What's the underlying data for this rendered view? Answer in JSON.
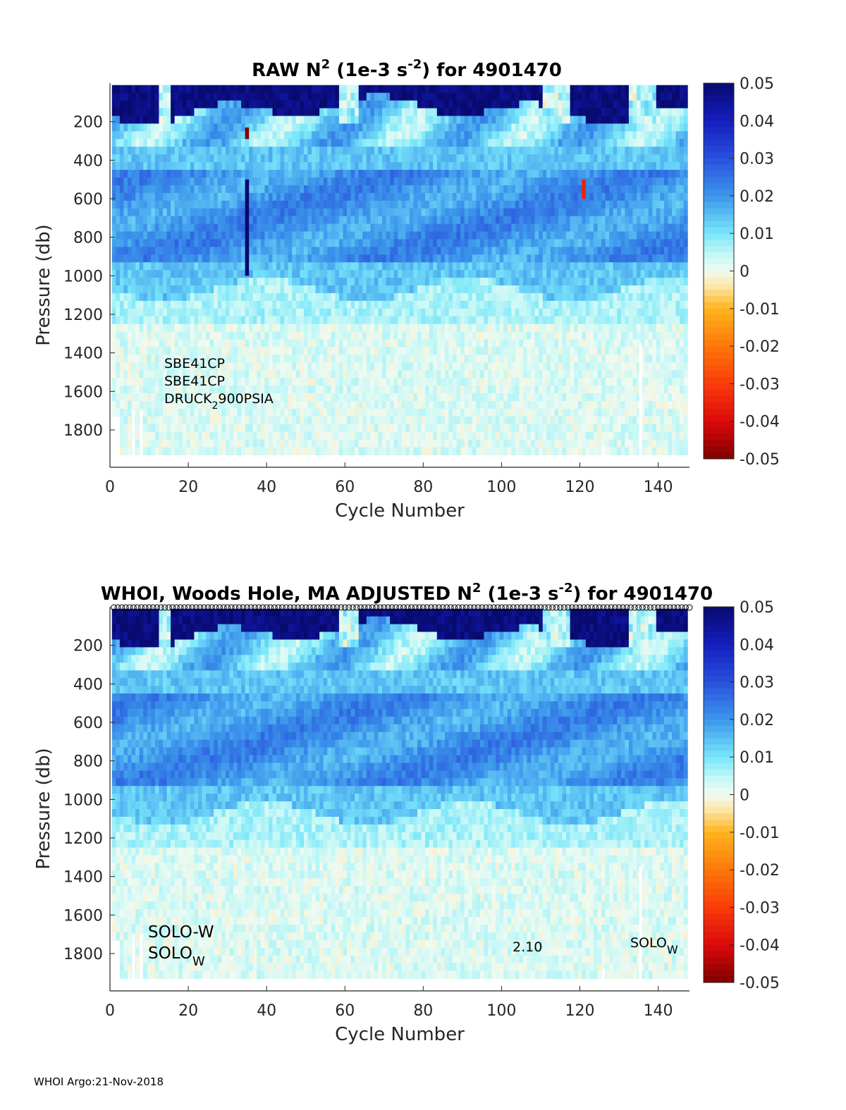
{
  "chart_data": [
    {
      "type": "heatmap",
      "title": {
        "prefix": "RAW N",
        "sup": "2",
        "mid": " (1e-3 s",
        "sup2": "-2",
        "suffix": ") for 4901470"
      },
      "xlabel": "Cycle Number",
      "ylabel": "Pressure (db)",
      "xlim": [
        0,
        148
      ],
      "ylim": [
        0,
        1950
      ],
      "y_reversed": true,
      "xticks": [
        "0",
        "20",
        "40",
        "60",
        "80",
        "100",
        "120",
        "140"
      ],
      "yticks": [
        "200",
        "400",
        "600",
        "800",
        "1000",
        "1200",
        "1400",
        "1600",
        "1800"
      ],
      "colorbar": {
        "range": [
          -0.05,
          0.05
        ],
        "ticks": [
          "0.05",
          "0.04",
          "0.03",
          "0.02",
          "0.01",
          "0",
          "-0.01",
          "-0.02",
          "-0.03",
          "-0.04",
          "-0.05"
        ],
        "colormap": "red-yellow-white-cyan-blue (jet-like diverging)"
      },
      "anomalies": [
        {
          "cycle": 35,
          "p_from": 230,
          "p_to": 290,
          "value": -0.05
        },
        {
          "cycle": 35,
          "p_from": 500,
          "p_to": 1000,
          "value": 0.05
        },
        {
          "cycle": 121,
          "p_from": 500,
          "p_to": 600,
          "value": -0.035
        }
      ],
      "annotations": [
        {
          "text": "SBE41CP"
        },
        {
          "text": "SBE41CP"
        },
        {
          "text": "DRUCK",
          "sub": "2",
          "after": "900PSIA"
        }
      ]
    },
    {
      "type": "heatmap",
      "title": {
        "prefix": "WHOI, Woods Hole, MA  ADJUSTED N",
        "sup": "2",
        "mid": " (1e-3 s",
        "sup2": "-2",
        "suffix": ") for 4901470"
      },
      "xlabel": "Cycle Number",
      "ylabel": "Pressure (db)",
      "xlim": [
        0,
        148
      ],
      "ylim": [
        0,
        1950
      ],
      "y_reversed": true,
      "xticks": [
        "0",
        "20",
        "40",
        "60",
        "80",
        "100",
        "120",
        "140"
      ],
      "yticks": [
        "200",
        "400",
        "600",
        "800",
        "1000",
        "1200",
        "1400",
        "1600",
        "1800"
      ],
      "colorbar": {
        "range": [
          -0.05,
          0.05
        ],
        "ticks": [
          "0.05",
          "0.04",
          "0.03",
          "0.02",
          "0.01",
          "0",
          "-0.01",
          "-0.02",
          "-0.03",
          "-0.04",
          "-0.05"
        ],
        "colormap": "red-yellow-white-cyan-blue (jet-like diverging)"
      },
      "marker_row": "open circles at the top of every cycle",
      "annotations": [
        {
          "text": "SOLO-W"
        },
        {
          "text": "SOLO",
          "sub": "W"
        },
        {
          "text": "2.10"
        },
        {
          "text": "SOLO",
          "sub": "W"
        }
      ]
    }
  ],
  "footer": "WHOI Argo:21-Nov-2018"
}
